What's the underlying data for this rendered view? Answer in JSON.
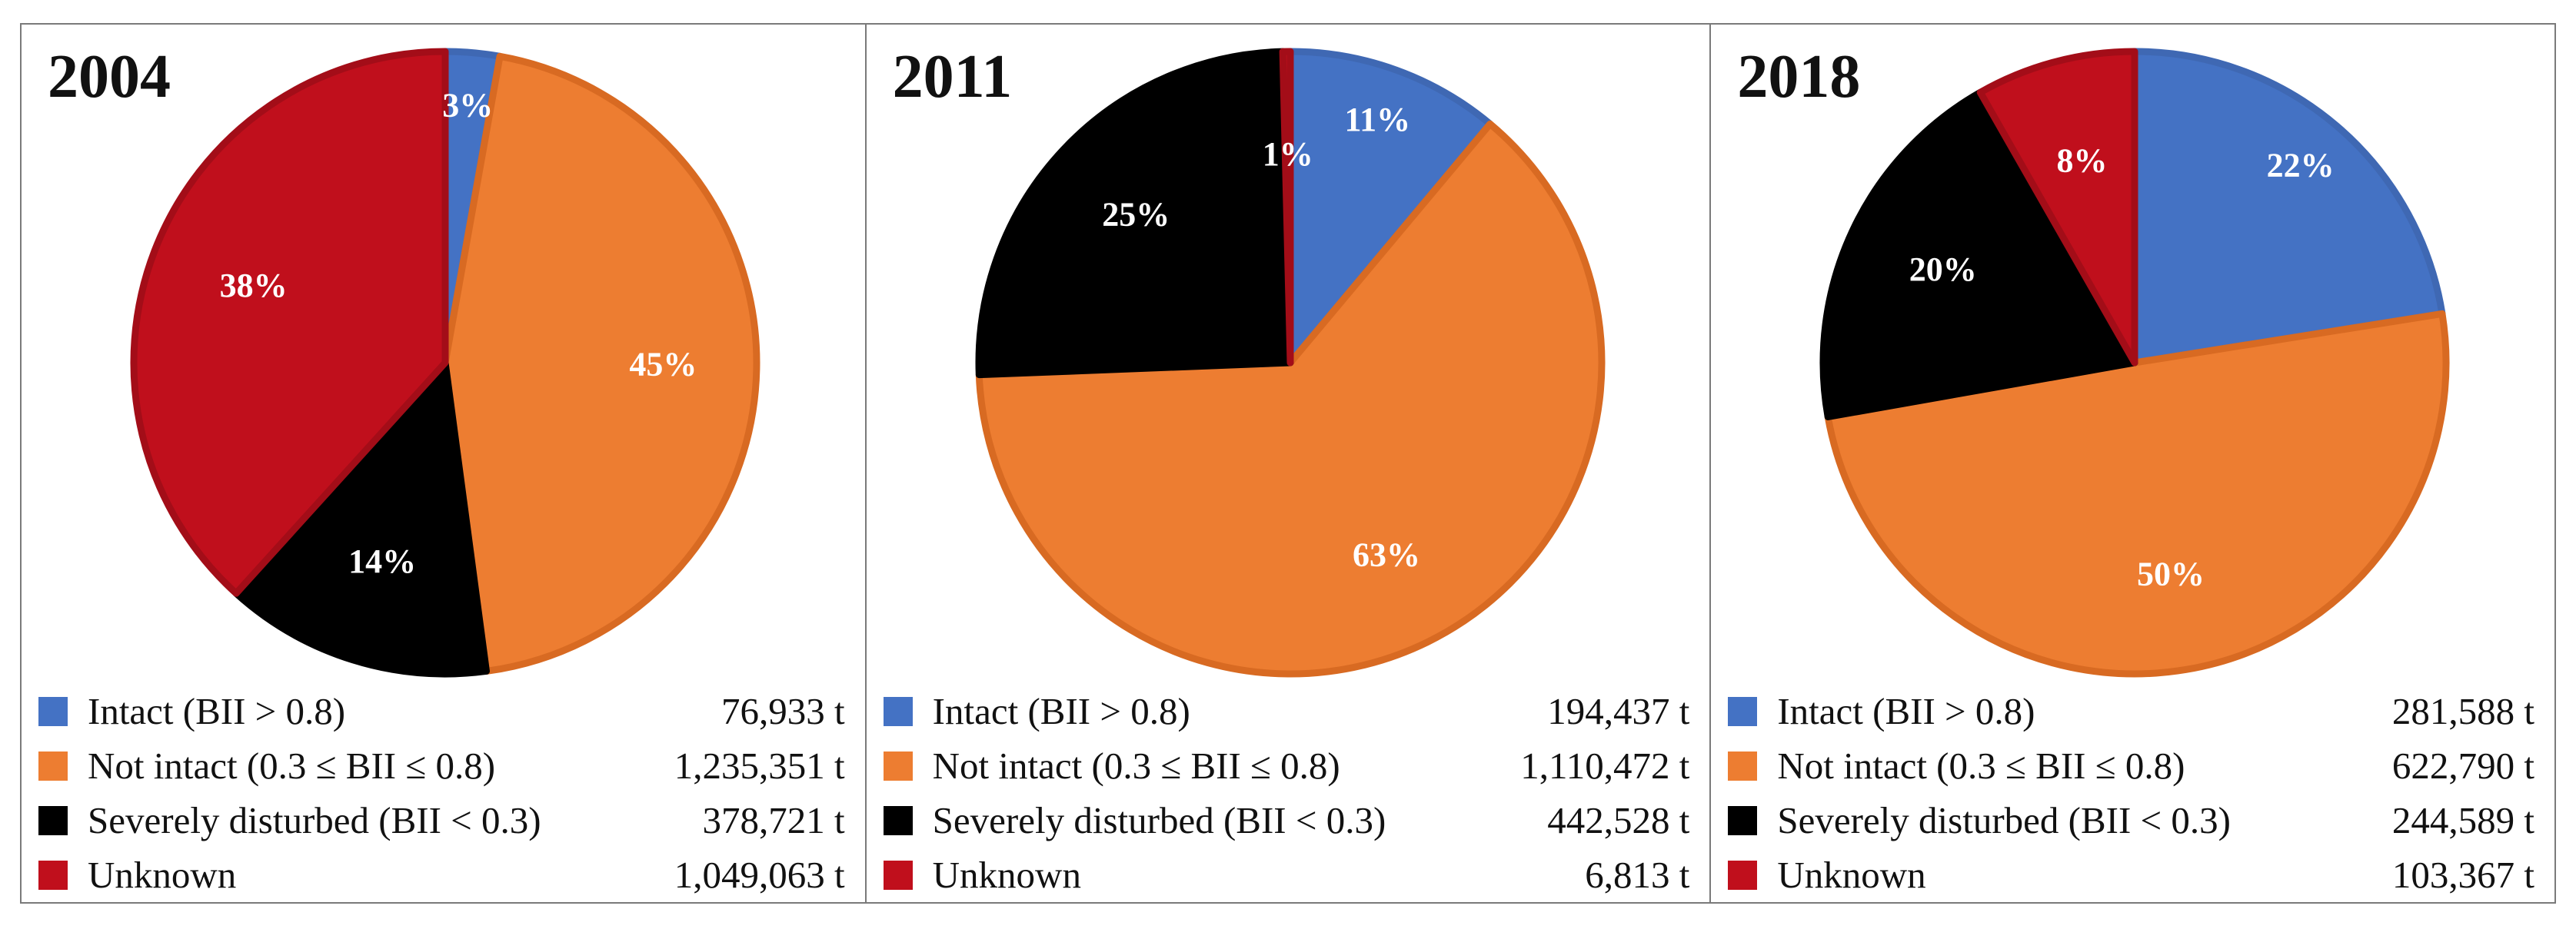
{
  "series_meta": [
    {
      "key": "intact",
      "label": "Intact (BII > 0.8)",
      "color": "#4472C4",
      "stroke": "#3F68B3"
    },
    {
      "key": "not_intact",
      "label": "Not intact (0.3 ≤ BII ≤ 0.8)",
      "color": "#ED7D31",
      "stroke": "#D86A22"
    },
    {
      "key": "severely",
      "label": "Severely disturbed (BII < 0.3)",
      "color": "#000000",
      "stroke": "#000000"
    },
    {
      "key": "unknown",
      "label": "Unknown",
      "color": "#C00F1C",
      "stroke": "#A30D18"
    }
  ],
  "chart_data": [
    {
      "type": "pie",
      "title": "2004",
      "categories": [
        "Intact (BII > 0.8)",
        "Not intact (0.3 ≤ BII ≤ 0.8)",
        "Severely disturbed (BII < 0.3)",
        "Unknown"
      ],
      "values": [
        76933,
        1235351,
        378721,
        1049063
      ],
      "percent_labels": [
        "3%",
        "45%",
        "14%",
        "38%"
      ],
      "value_labels": [
        "76,933 t",
        "1,235,351 t",
        "378,721 t",
        "1,049,063 t"
      ],
      "unit": "t"
    },
    {
      "type": "pie",
      "title": "2011",
      "categories": [
        "Intact (BII > 0.8)",
        "Not intact (0.3 ≤ BII ≤ 0.8)",
        "Severely disturbed (BII < 0.3)",
        "Unknown"
      ],
      "values": [
        194437,
        1110472,
        442528,
        6813
      ],
      "percent_labels": [
        "11%",
        "63%",
        "25%",
        "1%"
      ],
      "value_labels": [
        "194,437 t",
        "1,110,472 t",
        "442,528 t",
        "6,813 t"
      ],
      "unit": "t"
    },
    {
      "type": "pie",
      "title": "2018",
      "categories": [
        "Intact (BII > 0.8)",
        "Not intact (0.3 ≤ BII ≤ 0.8)",
        "Severely disturbed (BII < 0.3)",
        "Unknown"
      ],
      "values": [
        281588,
        622790,
        244589,
        103367
      ],
      "percent_labels": [
        "22%",
        "50%",
        "20%",
        "8%"
      ],
      "value_labels": [
        "281,588 t",
        "622,790 t",
        "244,589 t",
        "103,367 t"
      ],
      "unit": "t"
    }
  ]
}
